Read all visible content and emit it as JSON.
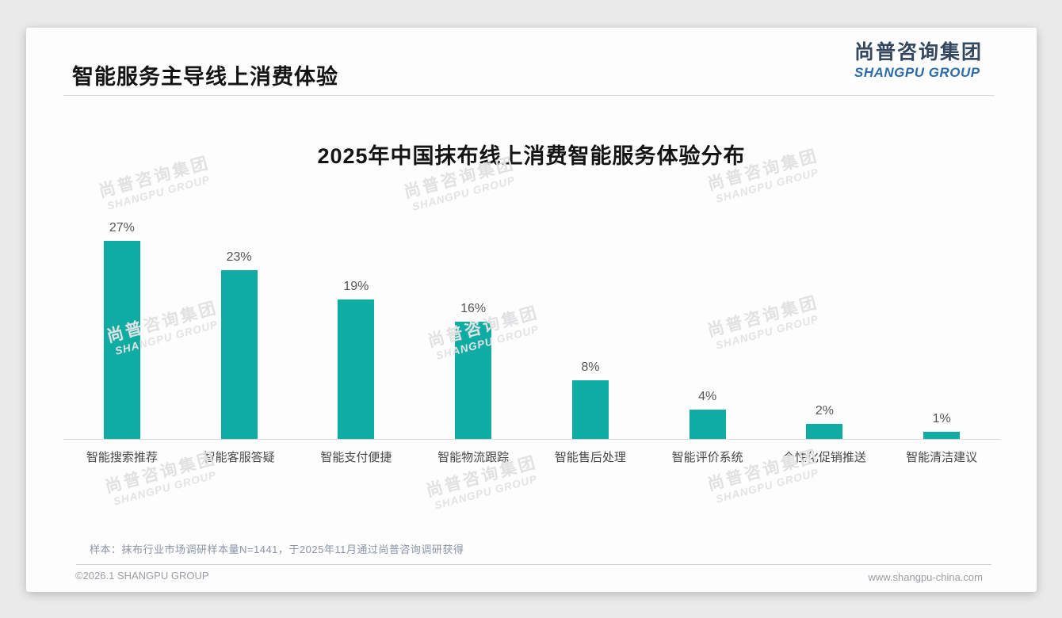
{
  "page": {
    "title": "智能服务主导线上消费体验",
    "logo": {
      "zh": "尚普咨询集团",
      "en": "SHANGPU GROUP"
    },
    "watermark": {
      "zh": "尚普咨询集团",
      "en": "SHANGPU GROUP"
    },
    "note": "样本：抹布行业市场调研样本量N=1441，于2025年11月通过尚普咨询调研获得",
    "footer": {
      "copyright": "©2026.1 SHANGPU GROUP",
      "website": "www.shangpu-china.com"
    }
  },
  "chart_data": {
    "type": "bar",
    "title": "2025年中国抹布线上消费智能服务体验分布",
    "categories": [
      "智能搜索推荐",
      "智能客服答疑",
      "智能支付便捷",
      "智能物流跟踪",
      "智能售后处理",
      "智能评价系统",
      "个性化促销推送",
      "智能清洁建议"
    ],
    "values": [
      27,
      23,
      19,
      16,
      8,
      4,
      2,
      1
    ],
    "value_labels": [
      "27%",
      "23%",
      "19%",
      "16%",
      "8%",
      "4%",
      "2%",
      "1%"
    ],
    "unit": "%",
    "ylim": [
      0,
      27
    ],
    "grid": false,
    "legend": "none",
    "bar_color": "#0EACA2",
    "label_color": "#555555"
  },
  "colors": {
    "accent_teal": "#0EACA2",
    "logo_navy": "#33475F",
    "logo_blue": "#2C6CAC",
    "watermark_gray": "#e1e1e3"
  }
}
